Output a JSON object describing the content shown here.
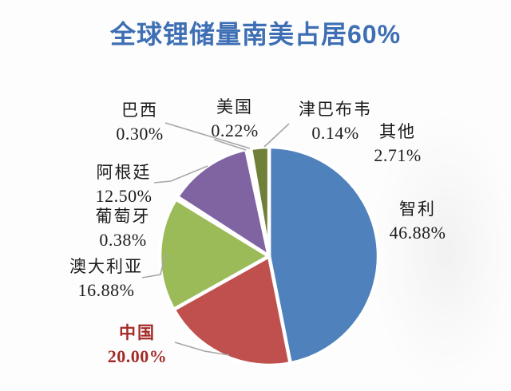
{
  "title": {
    "text": "全球锂储量南美占居60%"
  },
  "chart_data": {
    "type": "pie",
    "title": "全球锂储量南美占居60%",
    "unit": "percent",
    "direction": "clockwise",
    "start_angle_deg": 0,
    "legend": "none",
    "slices": [
      {
        "key": "chile",
        "label": "智利",
        "value": 46.88,
        "display": "46.88%",
        "color": "#4f81bd"
      },
      {
        "key": "china",
        "label": "中国",
        "value": 20.0,
        "display": "20.00%",
        "color": "#c0504d",
        "label_emphasis": "bold dark-red"
      },
      {
        "key": "australia",
        "label": "澳大利亚",
        "value": 16.88,
        "display": "16.88%",
        "color": "#9bbb59"
      },
      {
        "key": "portugal",
        "label": "葡萄牙",
        "value": 0.38,
        "display": "0.38%",
        "color": "#4bacc6"
      },
      {
        "key": "argentina",
        "label": "阿根廷",
        "value": 12.5,
        "display": "12.50%",
        "color": "#8064a2"
      },
      {
        "key": "brazil",
        "label": "巴西",
        "value": 0.3,
        "display": "0.30%",
        "color": "#f79646"
      },
      {
        "key": "usa",
        "label": "美国",
        "value": 0.22,
        "display": "0.22%",
        "color": "#2c4d75"
      },
      {
        "key": "zimbabwe",
        "label": "津巴布韦",
        "value": 0.14,
        "display": "0.14%",
        "color": "#772c2a"
      },
      {
        "key": "other",
        "label": "其他",
        "value": 2.71,
        "display": "2.71%",
        "color": "#6f8138"
      }
    ]
  },
  "colors": {
    "title_text": "#3e6fb4",
    "label_text": "#1c1c1c",
    "china_label_text": "#a32b28",
    "leader_line": "#a6a6a6",
    "slice_border": "#ffffff",
    "background": "#fdfdfd"
  }
}
